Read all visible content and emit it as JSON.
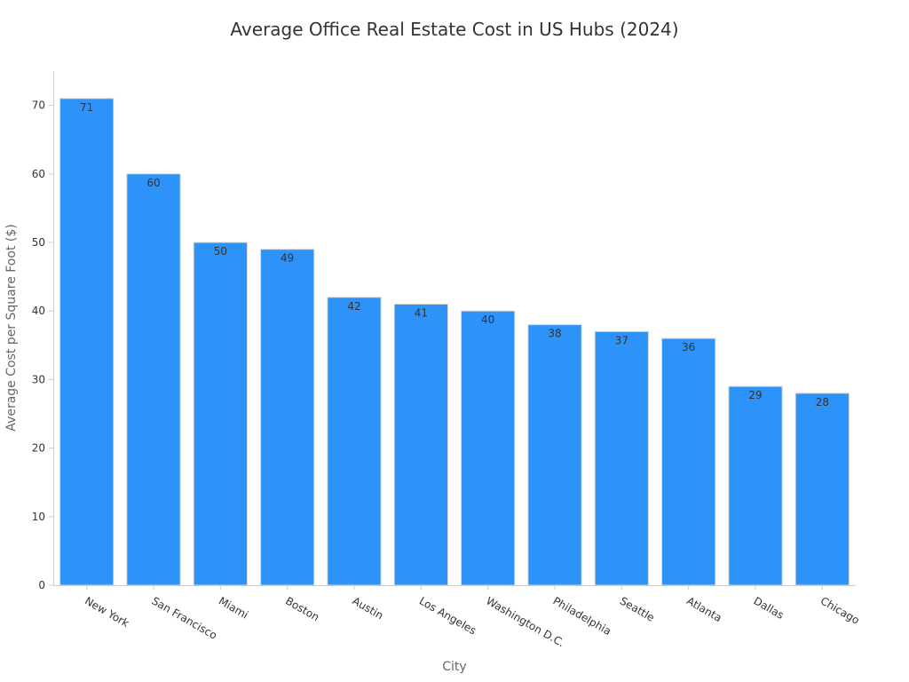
{
  "chart_data": {
    "type": "bar",
    "title": "Average Office Real Estate Cost in US Hubs (2024)",
    "xlabel": "City",
    "ylabel": "Average Cost per Square Foot ($)",
    "categories": [
      "New York",
      "San Francisco",
      "Miami",
      "Boston",
      "Austin",
      "Los Angeles",
      "Washington D.C.",
      "Philadelphia",
      "Seattle",
      "Atlanta",
      "Dallas",
      "Chicago"
    ],
    "values": [
      71,
      60,
      50,
      49,
      42,
      41,
      40,
      38,
      37,
      36,
      29,
      28
    ],
    "y_ticks": [
      "0",
      "10",
      "20",
      "30",
      "40",
      "50",
      "60",
      "70"
    ],
    "ylim": [
      0,
      75
    ],
    "grid": false,
    "legend": "none",
    "bar_color": "#2e93f8",
    "bar_edge_color": "#d8d8d8"
  }
}
